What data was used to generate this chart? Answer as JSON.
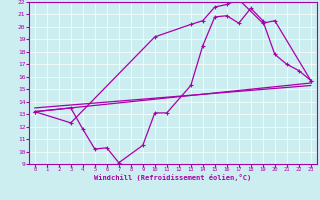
{
  "xlabel": "Windchill (Refroidissement éolien,°C)",
  "bg_color": "#cceef0",
  "line_color": "#aa00aa",
  "xlim": [
    -0.5,
    23.5
  ],
  "ylim": [
    9,
    22
  ],
  "xticks": [
    0,
    1,
    2,
    3,
    4,
    5,
    6,
    7,
    8,
    9,
    10,
    11,
    12,
    13,
    14,
    15,
    16,
    17,
    18,
    19,
    20,
    21,
    22,
    23
  ],
  "yticks": [
    9,
    10,
    11,
    12,
    13,
    14,
    15,
    16,
    17,
    18,
    19,
    20,
    21,
    22
  ],
  "line1_x": [
    0,
    3,
    4,
    5,
    6,
    7,
    9,
    10,
    11,
    13,
    14,
    15,
    16,
    17,
    18,
    19,
    20,
    21,
    22,
    23
  ],
  "line1_y": [
    13.2,
    13.5,
    11.8,
    10.2,
    10.3,
    9.1,
    10.5,
    13.1,
    13.1,
    15.3,
    18.5,
    20.8,
    20.9,
    20.3,
    21.5,
    20.5,
    17.8,
    17.0,
    16.5,
    15.7
  ],
  "line2_x": [
    0,
    3,
    10,
    13,
    14,
    15,
    16,
    17,
    19,
    20,
    23
  ],
  "line2_y": [
    13.2,
    12.3,
    19.2,
    20.2,
    20.5,
    21.6,
    21.8,
    22.2,
    20.3,
    20.5,
    15.7
  ],
  "line3_x": [
    0,
    23
  ],
  "line3_y": [
    13.2,
    15.5
  ],
  "line4_x": [
    0,
    23
  ],
  "line4_y": [
    13.5,
    15.3
  ]
}
